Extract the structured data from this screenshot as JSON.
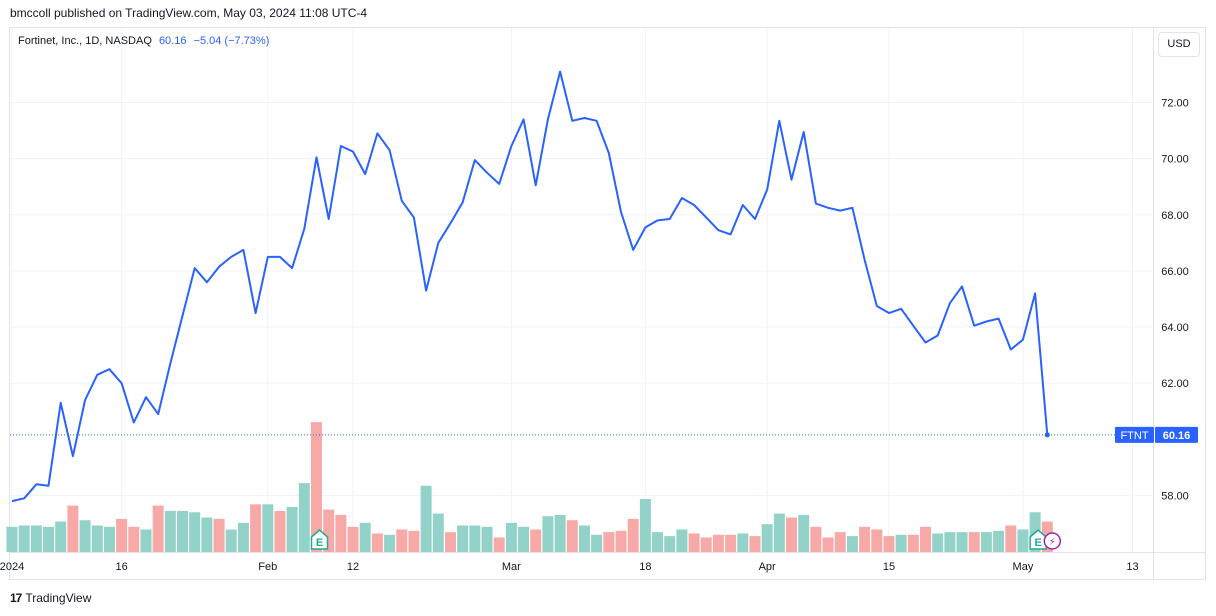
{
  "header": {
    "text": "bmccoll published on TradingView.com, May 03, 2024 11:08 UTC-4"
  },
  "legend": {
    "symbol_line": "Fortinet, Inc., 1D, NASDAQ",
    "last": "60.16",
    "change": "−5.04 (−7.73%)"
  },
  "currency_button": "USD",
  "price_tag": {
    "ticker": "FTNT",
    "value": "60.16"
  },
  "footer": {
    "logo": "17",
    "brand": "TradingView"
  },
  "colors": {
    "line": "#2962ff",
    "volume_up": "#92d2c8",
    "volume_down": "#f7a9a7",
    "grid": "#f0f3fa",
    "earnings": "#22ab94",
    "dividend": "#9c27b0"
  },
  "chart_data": {
    "type": "line",
    "title": "Fortinet, Inc., 1D, NASDAQ",
    "y_ticks": [
      "58.00",
      "62.00",
      "64.00",
      "66.00",
      "68.00",
      "70.00",
      "72.00"
    ],
    "ylim": [
      56.2,
      73.8
    ],
    "x_ticks": [
      {
        "label": "2024",
        "index": 0
      },
      {
        "label": "16",
        "index": 9
      },
      {
        "label": "Feb",
        "index": 21
      },
      {
        "label": "12",
        "index": 28
      },
      {
        "label": "Mar",
        "index": 41
      },
      {
        "label": "18",
        "index": 52
      },
      {
        "label": "Apr",
        "index": 62
      },
      {
        "label": "15",
        "index": 72
      },
      {
        "label": "May",
        "index": 83
      },
      {
        "label": "13",
        "index": 92
      }
    ],
    "series": [
      {
        "values": [
          57.8,
          57.9,
          58.4,
          58.35,
          61.3,
          59.4,
          61.4,
          62.3,
          62.5,
          62.0,
          60.6,
          61.5,
          60.9,
          62.7,
          64.4,
          66.1,
          65.6,
          66.15,
          66.5,
          66.75,
          64.5,
          66.5,
          66.5,
          66.1,
          67.5,
          70.05,
          67.85,
          70.45,
          70.25,
          69.45,
          70.9,
          70.3,
          68.5,
          67.9,
          65.3,
          67.0,
          67.7,
          68.45,
          69.95,
          69.5,
          69.1,
          70.45,
          71.4,
          69.05,
          71.4,
          73.1,
          71.35,
          71.45,
          71.35,
          70.2,
          68.1,
          66.75,
          67.55,
          67.8,
          67.85,
          68.6,
          68.35,
          67.9,
          67.45,
          67.3,
          68.35,
          67.85,
          68.9,
          71.35,
          69.25,
          70.95,
          68.4,
          68.25,
          68.15,
          68.25,
          66.4,
          64.75,
          64.5,
          64.65,
          64.05,
          63.45,
          63.7,
          64.85,
          65.45,
          64.05,
          64.2,
          64.3,
          63.2,
          63.55,
          65.2,
          60.16
        ]
      }
    ],
    "volume": {
      "values": [
        0.95,
        1.0,
        1.0,
        0.95,
        1.15,
        1.75,
        1.2,
        1.0,
        0.95,
        1.25,
        0.95,
        0.85,
        1.75,
        1.55,
        1.55,
        1.5,
        1.3,
        1.25,
        0.85,
        1.1,
        1.8,
        1.8,
        1.55,
        1.7,
        2.6,
        4.9,
        1.6,
        1.4,
        0.95,
        1.1,
        0.7,
        0.65,
        0.85,
        0.8,
        2.5,
        1.45,
        0.75,
        1.0,
        1.0,
        0.95,
        0.55,
        1.1,
        0.95,
        0.85,
        1.35,
        1.4,
        1.2,
        1.0,
        0.65,
        0.75,
        0.8,
        1.25,
        2.0,
        0.75,
        0.6,
        0.85,
        0.7,
        0.55,
        0.65,
        0.65,
        0.7,
        0.6,
        1.05,
        1.45,
        1.3,
        1.4,
        0.95,
        0.55,
        0.75,
        0.6,
        0.95,
        0.85,
        0.6,
        0.65,
        0.65,
        0.95,
        0.7,
        0.75,
        0.75,
        0.75,
        0.75,
        0.8,
        1.0,
        0.85,
        1.5,
        1.15
      ],
      "direction": [
        1,
        1,
        1,
        1,
        1,
        0,
        1,
        1,
        1,
        0,
        0,
        1,
        0,
        1,
        1,
        1,
        1,
        0,
        1,
        1,
        0,
        1,
        0,
        1,
        1,
        0,
        0,
        0,
        0,
        1,
        0,
        1,
        0,
        0,
        1,
        1,
        0,
        1,
        1,
        1,
        0,
        1,
        1,
        0,
        1,
        1,
        0,
        1,
        1,
        0,
        0,
        0,
        1,
        1,
        1,
        1,
        0,
        0,
        0,
        0,
        1,
        0,
        1,
        1,
        0,
        1,
        0,
        0,
        0,
        1,
        0,
        0,
        0,
        1,
        0,
        0,
        1,
        1,
        1,
        0,
        1,
        1,
        0,
        1,
        1,
        0
      ]
    },
    "events": [
      {
        "type": "earnings",
        "label": "E",
        "index": 25
      },
      {
        "type": "earnings",
        "label": "E",
        "index": 84
      },
      {
        "type": "dividend",
        "label": "⚡",
        "index": 85
      }
    ]
  }
}
